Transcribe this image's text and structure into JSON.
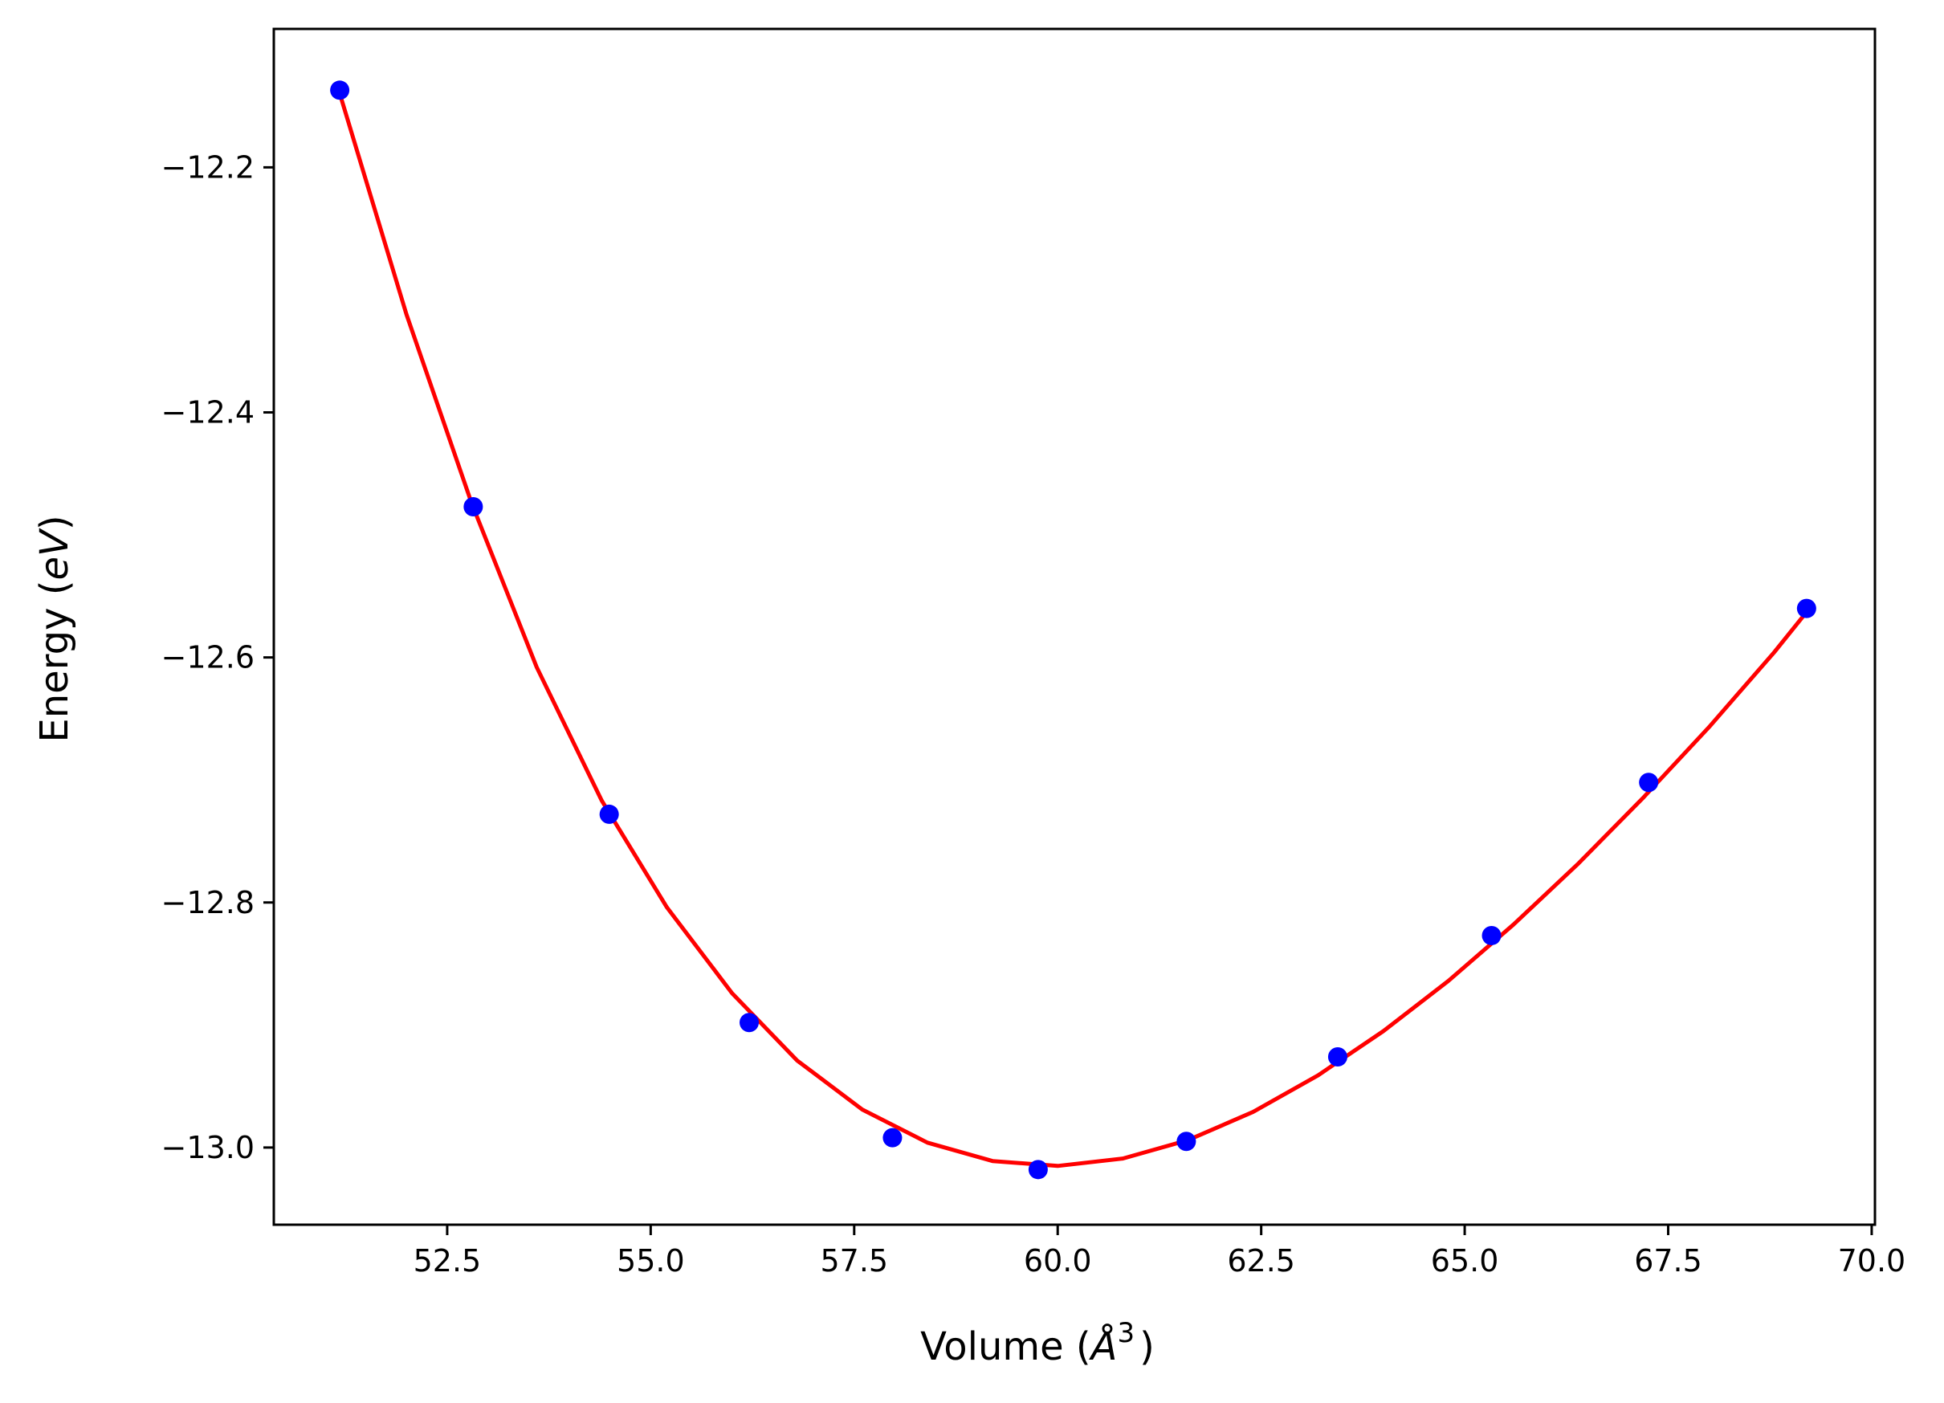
{
  "chart_data": {
    "type": "scatter",
    "title": "",
    "xlabel_parts": {
      "prefix": "Volume (",
      "symbol": "Å",
      "exponent": "3",
      "suffix": ")"
    },
    "ylabel_parts": {
      "prefix": "Energy (",
      "symbol": "eV",
      "suffix": ")"
    },
    "xlim": [
      50.37,
      70.04
    ],
    "ylim": [
      -13.063,
      -12.087
    ],
    "xticks": [
      52.5,
      55.0,
      57.5,
      60.0,
      62.5,
      65.0,
      67.5,
      70.0
    ],
    "xtick_labels": [
      "52.5",
      "55.0",
      "57.5",
      "60.0",
      "62.5",
      "65.0",
      "67.5",
      "70.0"
    ],
    "yticks": [
      -12.2,
      -12.4,
      -12.6,
      -12.8,
      -13.0
    ],
    "ytick_labels": [
      "−12.2",
      "−12.4",
      "−12.6",
      "−12.8",
      "−13.0"
    ],
    "grid": false,
    "series": [
      {
        "kind": "points",
        "color": "#0000ff",
        "x": [
          51.18,
          52.82,
          54.49,
          56.21,
          57.97,
          59.76,
          61.58,
          63.44,
          65.33,
          67.26,
          69.2
        ],
        "y": [
          -12.137,
          -12.477,
          -12.728,
          -12.898,
          -12.992,
          -13.018,
          -12.995,
          -12.926,
          -12.827,
          -12.702,
          -12.56
        ]
      },
      {
        "kind": "fit-curve",
        "color": "#ff0000",
        "x": [
          51.2,
          52.0,
          52.8,
          53.6,
          54.4,
          55.2,
          56.0,
          56.8,
          57.6,
          58.4,
          59.2,
          60.0,
          60.8,
          61.6,
          62.4,
          63.2,
          64.0,
          64.8,
          65.6,
          66.4,
          67.2,
          68.0,
          68.8,
          69.2
        ],
        "y": [
          -12.144,
          -12.32,
          -12.474,
          -12.608,
          -12.717,
          -12.804,
          -12.874,
          -12.929,
          -12.969,
          -12.996,
          -13.011,
          -13.015,
          -13.009,
          -12.994,
          -12.971,
          -12.941,
          -12.905,
          -12.864,
          -12.818,
          -12.768,
          -12.714,
          -12.657,
          -12.596,
          -12.563
        ]
      }
    ]
  }
}
